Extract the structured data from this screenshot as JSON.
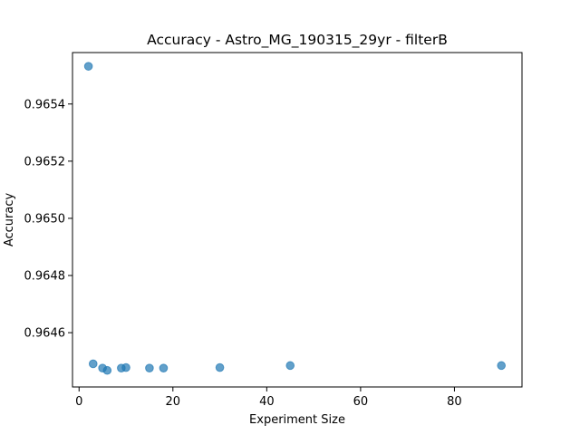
{
  "chart_data": {
    "type": "scatter",
    "title": "Accuracy - Astro_MG_190315_29yr - filterB",
    "xlabel": "Experiment Size",
    "ylabel": "Accuracy",
    "xlim": [
      -1.4,
      94.4
    ],
    "ylim": [
      0.96441,
      0.96558
    ],
    "xticks": [
      0,
      20,
      40,
      60,
      80
    ],
    "xtick_labels": [
      "0",
      "20",
      "40",
      "60",
      "80"
    ],
    "yticks": [
      0.9646,
      0.9648,
      0.965,
      0.9652,
      0.9654
    ],
    "ytick_labels": [
      "0.9646",
      "0.9648",
      "0.9650",
      "0.9652",
      "0.9654"
    ],
    "grid": false,
    "marker_color": "#1f77b4",
    "marker_alpha": 0.7,
    "points": [
      {
        "x": 2,
        "y": 0.965532
      },
      {
        "x": 3,
        "y": 0.964491
      },
      {
        "x": 5,
        "y": 0.964476
      },
      {
        "x": 6,
        "y": 0.964468
      },
      {
        "x": 9,
        "y": 0.964476
      },
      {
        "x": 10,
        "y": 0.964478
      },
      {
        "x": 15,
        "y": 0.964476
      },
      {
        "x": 18,
        "y": 0.964476
      },
      {
        "x": 30,
        "y": 0.964478
      },
      {
        "x": 45,
        "y": 0.964485
      },
      {
        "x": 90,
        "y": 0.964485
      }
    ]
  }
}
